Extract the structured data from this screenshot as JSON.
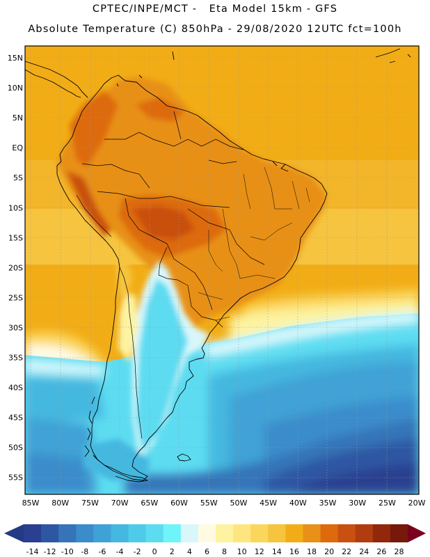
{
  "header": {
    "title_line1": "CPTEC/INPE/MCT -   Eta Model 15km - GFS",
    "title_line2": "Absolute Temperature (C) 850hPa - 29/08/2020 12UTC fct=100h"
  },
  "map": {
    "latitude_labels": [
      "15N",
      "10N",
      "5N",
      "EQ",
      "5S",
      "10S",
      "15S",
      "20S",
      "25S",
      "30S",
      "35S",
      "40S",
      "45S",
      "50S",
      "55S"
    ],
    "longitude_labels": [
      "85W",
      "80W",
      "75W",
      "70W",
      "65W",
      "60W",
      "55W",
      "50W",
      "45W",
      "40W",
      "35W",
      "30W",
      "25W",
      "20W"
    ],
    "region": "South America",
    "lat_range": [
      17,
      -58
    ],
    "lon_range": [
      -86,
      -19
    ]
  },
  "legend": {
    "colors": [
      "#2a3f8f",
      "#2d57a3",
      "#3574b8",
      "#3b8ccb",
      "#3fa2d6",
      "#44b8e0",
      "#4fcbea",
      "#5ddcf1",
      "#6ff4f9",
      "#d8f7fb",
      "#fffbe3",
      "#fdf3a0",
      "#fde67e",
      "#fbd65d",
      "#f6c43e",
      "#f2ad16",
      "#e89018",
      "#dd6a0d",
      "#c95011",
      "#b03d10",
      "#91270b",
      "#76190a"
    ],
    "labels": [
      "-14",
      "-12",
      "-10",
      "-8",
      "-6",
      "-4",
      "-2",
      "0",
      "2",
      "4",
      "6",
      "8",
      "10",
      "12",
      "14",
      "16",
      "18",
      "20",
      "22",
      "24",
      "26",
      "28"
    ],
    "underflow_color": "#253a85",
    "overflow_color": "#7a0020"
  }
}
